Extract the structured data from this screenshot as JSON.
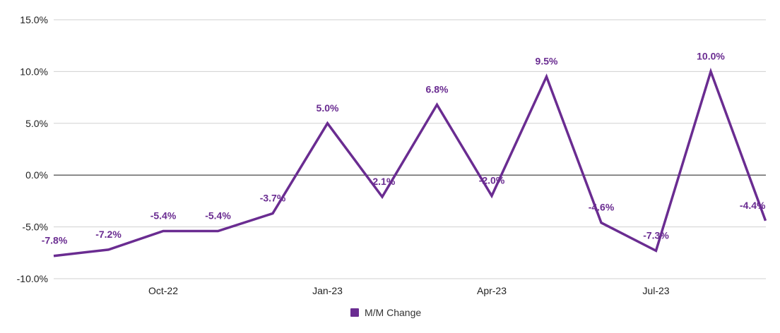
{
  "chart_data": {
    "type": "line",
    "title": "",
    "xlabel": "",
    "ylabel": "",
    "ylim": [
      -10,
      15
    ],
    "y_ticks": [
      15,
      10,
      5,
      0,
      -5,
      -10
    ],
    "y_tick_labels": [
      "15.0%",
      "10.0%",
      "5.0%",
      "0.0%",
      "-5.0%",
      "-10.0%"
    ],
    "x_tick_labels": [
      "Oct-22",
      "Jan-23",
      "Apr-23",
      "Jul-23"
    ],
    "x_tick_indices": [
      2,
      5,
      8,
      11
    ],
    "categories": [
      "Aug-22",
      "Sep-22",
      "Oct-22",
      "Nov-22",
      "Dec-22",
      "Jan-23",
      "Feb-23",
      "Mar-23",
      "Apr-23",
      "May-23",
      "Jun-23",
      "Jul-23",
      "Aug-23",
      "Sep-23"
    ],
    "series": [
      {
        "name": "M/M Change",
        "color": "#6a2c91",
        "values": [
          -7.8,
          -7.2,
          -5.4,
          -5.4,
          -3.7,
          5.0,
          -2.1,
          6.8,
          -2.0,
          9.5,
          -4.6,
          -7.3,
          10.0,
          -4.4
        ],
        "labels": [
          "-7.8%",
          "-7.2%",
          "-5.4%",
          "-5.4%",
          "-3.7%",
          "5.0%",
          "-2.1%",
          "6.8%",
          "-2.0%",
          "9.5%",
          "-4.6%",
          "-7.3%",
          "10.0%",
          "-4.4%"
        ]
      }
    ],
    "grid": true,
    "legend": "bottom"
  }
}
